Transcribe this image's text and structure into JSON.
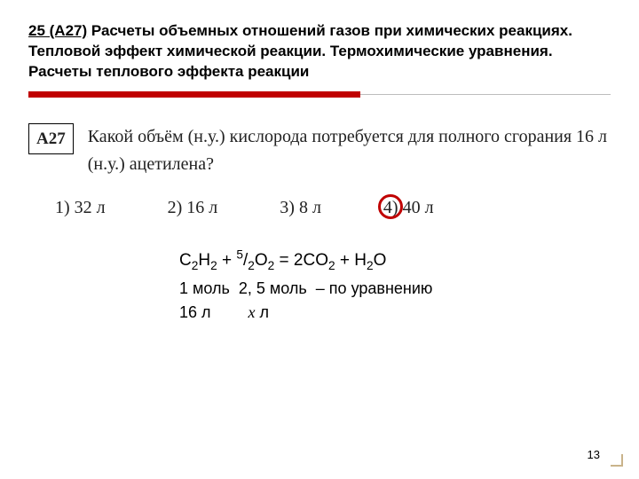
{
  "title": {
    "num": "25 (А27)",
    "text": " Расчеты объемных отношений газов при химических реакциях. Тепловой эффект химической реакции. Термохимические уравнения. Расчеты теплового эффекта реакции"
  },
  "question": {
    "label": "А27",
    "text": "Какой объём (н.у.) кислорода потребуется для полного сгорания 16 л (н.у.) ацетилена?"
  },
  "answers": {
    "a1": "1) 32 л",
    "a2": "2) 16 л",
    "a3": "3) 8 л",
    "a4_num": "4)",
    "a4_val": " 40 л"
  },
  "work": {
    "eq_c": "C",
    "eq_h": "H",
    "eq_o": "O",
    "eq_co2": "CO",
    "plus": " + ",
    "eq_frac_num": "5",
    "eq_frac_den": "2",
    "eq_eq": " = 2",
    "sub2": "2",
    "mol1": "1 моль",
    "mol2": "2, 5 моль",
    "by_eq": "– по уравнению",
    "l1": "16 л",
    "xvar": "x",
    "l2": " л"
  },
  "page": "13",
  "colors": {
    "accent": "#c00000",
    "rule_grey": "#bdbdbd"
  }
}
